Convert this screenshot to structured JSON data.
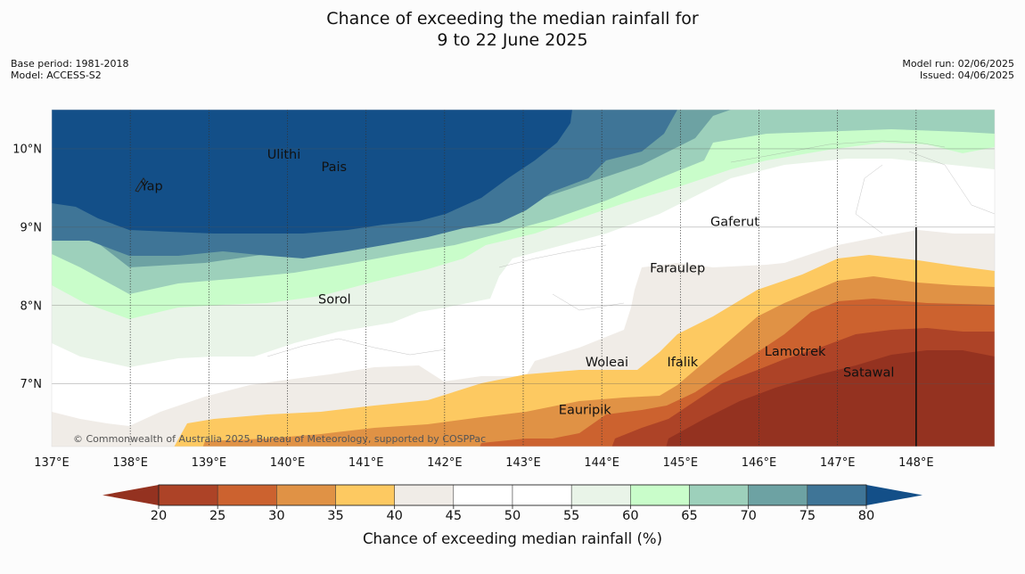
{
  "title": {
    "line1": "Chance of exceeding the median rainfall for",
    "line2": "9 to 22 June 2025"
  },
  "meta_left": {
    "base_period": "Base period: 1981-2018",
    "model": "Model: ACCESS-S2"
  },
  "meta_right": {
    "model_run": "Model run: 02/06/2025",
    "issued": "Issued: 04/06/2025"
  },
  "map": {
    "lon_range": [
      137,
      149
    ],
    "lat_range": [
      6.2,
      10.5
    ],
    "lon_ticks": [
      {
        "value": 137,
        "label": "137°E"
      },
      {
        "value": 138,
        "label": "138°E"
      },
      {
        "value": 139,
        "label": "139°E"
      },
      {
        "value": 140,
        "label": "140°E"
      },
      {
        "value": 141,
        "label": "141°E"
      },
      {
        "value": 142,
        "label": "142°E"
      },
      {
        "value": 143,
        "label": "143°E"
      },
      {
        "value": 144,
        "label": "144°E"
      },
      {
        "value": 145,
        "label": "145°E"
      },
      {
        "value": 146,
        "label": "146°E"
      },
      {
        "value": 147,
        "label": "147°E"
      },
      {
        "value": 148,
        "label": "148°E"
      }
    ],
    "lat_ticks": [
      {
        "value": 10,
        "label": "10°N"
      },
      {
        "value": 9,
        "label": "9°N"
      },
      {
        "value": 8,
        "label": "8°N"
      },
      {
        "value": 7,
        "label": "7°N"
      }
    ],
    "places": [
      {
        "name": "Ulithi",
        "lon": 139.73,
        "lat": 9.93
      },
      {
        "name": "Pais",
        "lon": 140.42,
        "lat": 9.77
      },
      {
        "name": "Yap",
        "lon": 138.12,
        "lat": 9.53
      },
      {
        "name": "Gaferut",
        "lon": 145.37,
        "lat": 9.07
      },
      {
        "name": "Faraulep",
        "lon": 144.6,
        "lat": 8.48
      },
      {
        "name": "Sorol",
        "lon": 140.38,
        "lat": 8.08
      },
      {
        "name": "Woleai",
        "lon": 143.78,
        "lat": 7.28
      },
      {
        "name": "Ifalik",
        "lon": 144.82,
        "lat": 7.28
      },
      {
        "name": "Lamotrek",
        "lon": 146.06,
        "lat": 7.42
      },
      {
        "name": "Satawal",
        "lon": 147.06,
        "lat": 7.15
      },
      {
        "name": "Eauripik",
        "lon": 143.44,
        "lat": 6.67
      }
    ],
    "boundary_line": {
      "lon": 148,
      "lat_top": 9.0
    },
    "copyright": "© Commonwealth of Australia 2025, Bureau of Meteorology, supported by COSPPac"
  },
  "colorbar": {
    "label": "Chance of exceeding median rainfall (%)",
    "ticks": [
      "20",
      "25",
      "30",
      "35",
      "40",
      "45",
      "50",
      "55",
      "60",
      "65",
      "70",
      "75",
      "80"
    ],
    "under_color": "#943220",
    "over_color": "#134f88",
    "band_colors": [
      "#ad4327",
      "#cc622f",
      "#e09245",
      "#fdc961",
      "#f0ece7",
      "#ffffff",
      "#ffffff",
      "#e9f4e8",
      "#c9fdca",
      "#9dd0bb",
      "#6da2a3",
      "#3f7597"
    ]
  }
}
